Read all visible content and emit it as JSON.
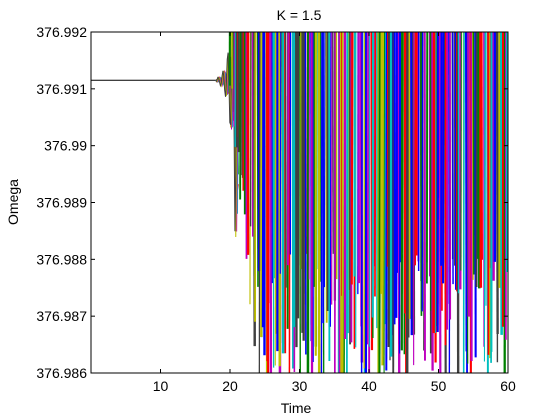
{
  "chart_data": {
    "type": "line",
    "title": "K = 1.5",
    "xlabel": "Time",
    "ylabel": "Omega",
    "xlim": [
      0,
      60
    ],
    "ylim": [
      376.986,
      376.992
    ],
    "x_ticks": [
      10,
      20,
      30,
      40,
      50,
      60
    ],
    "x_tick_labels": [
      "10",
      "20",
      "30",
      "40",
      "50",
      "60"
    ],
    "y_ticks": [
      376.986,
      376.987,
      376.988,
      376.989,
      376.99,
      376.991,
      376.992
    ],
    "y_tick_labels": [
      "376.986",
      "376.987",
      "376.988",
      "376.989",
      "376.99",
      "376.991",
      "376.992"
    ],
    "grid": false,
    "legend": "none",
    "steady_value": 376.99115,
    "steady_until_time": 18,
    "instability_onset_time": 20,
    "series_colors": [
      "#0000ff",
      "#008000",
      "#ff0000",
      "#00bfbf",
      "#bf00bf",
      "#bfbf00",
      "#404040"
    ]
  }
}
